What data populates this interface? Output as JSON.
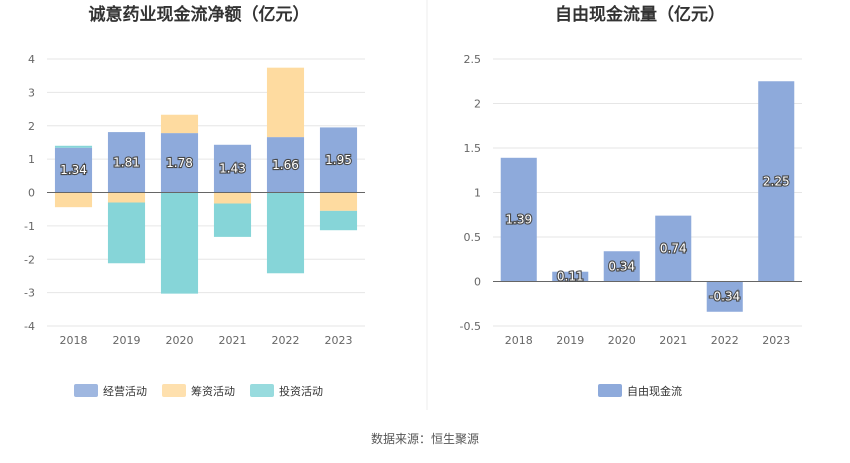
{
  "colors": {
    "operating": "#8eaadb",
    "financing": "#fedba0",
    "investing": "#86d5d8",
    "freecash": "#8eaadb",
    "grid": "#e6e6e6",
    "axis": "#666666"
  },
  "source": "数据来源：恒生聚源",
  "chart_data": [
    {
      "type": "bar",
      "stacked": true,
      "title": "诚意药业现金流净额（亿元）",
      "categories": [
        "2018",
        "2019",
        "2020",
        "2021",
        "2022",
        "2023"
      ],
      "ylim": [
        -4,
        4
      ],
      "yticks": [
        4,
        3,
        2,
        1,
        0,
        -1,
        -2,
        -3,
        -4
      ],
      "legend_position": "bottom",
      "grid": true,
      "series": [
        {
          "name": "经营活动",
          "color_key": "operating",
          "values": [
            1.34,
            1.81,
            1.78,
            1.43,
            1.66,
            1.95
          ],
          "labeled": true
        },
        {
          "name": "筹资活动",
          "color_key": "financing",
          "values": [
            -0.44,
            -0.3,
            0.55,
            -0.33,
            2.08,
            -0.55
          ]
        },
        {
          "name": "投资活动",
          "color_key": "investing",
          "values": [
            0.06,
            -1.82,
            -3.03,
            -1.0,
            -2.42,
            -0.58
          ]
        }
      ]
    },
    {
      "type": "bar",
      "title": "自由现金流量（亿元）",
      "categories": [
        "2018",
        "2019",
        "2020",
        "2021",
        "2022",
        "2023"
      ],
      "ylim": [
        -0.5,
        2.5
      ],
      "yticks": [
        2.5,
        2,
        1.5,
        1,
        0.5,
        0,
        -0.5
      ],
      "legend_position": "bottom",
      "grid": true,
      "series": [
        {
          "name": "自由现金流",
          "color_key": "freecash",
          "values": [
            1.39,
            0.11,
            0.34,
            0.74,
            -0.34,
            2.25
          ],
          "labeled": true
        }
      ]
    }
  ]
}
